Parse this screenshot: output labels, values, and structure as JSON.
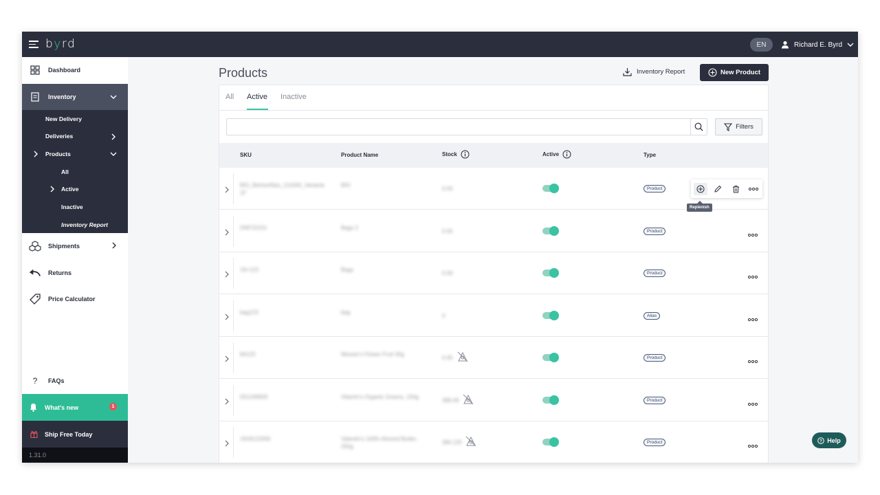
{
  "header": {
    "logo": "b",
    "logo_y": "y",
    "logo_rest": "rd",
    "language": "EN",
    "user_name": "Richard E. Byrd"
  },
  "sidebar": {
    "dashboard": "Dashboard",
    "inventory": "Inventory",
    "new_delivery": "New Delivery",
    "deliveries": "Deliveries",
    "products": "Products",
    "all": "All",
    "active": "Active",
    "inactive": "Inactive",
    "inventory_report": "Inventory Report",
    "shipments": "Shipments",
    "returns": "Returns",
    "price_calculator": "Price Calculator",
    "faqs": "FAQs",
    "whats_new": "What's new",
    "whats_new_count": "1",
    "ship_free": "Ship Free Today",
    "version": "1.31.0"
  },
  "main": {
    "title": "Products",
    "inventory_report_button": "Inventory Report",
    "new_product_button": "New Product",
    "tabs": [
      "All",
      "Active",
      "Inactive"
    ],
    "active_tab": "Active",
    "search_placeholder": "",
    "filters_button": "Filters",
    "columns": {
      "sku": "SKU",
      "product_name": "Product Name",
      "stock": "Stock",
      "active": "Active",
      "type": "Type"
    },
    "tooltip": "Replenish",
    "rows": [
      {
        "sku": "BIO_Bertverflats_12x500_Variante 1F",
        "name": "BIO",
        "stock": "0.00",
        "type": "Product",
        "no_image": false
      },
      {
        "sku": "DNF22210",
        "name": "Bags 2",
        "stock": "0.05",
        "type": "Product",
        "no_image": false
      },
      {
        "sku": "19+123",
        "name": "Bags",
        "stock": "0.00",
        "type": "Product",
        "no_image": false
      },
      {
        "sku": "bag123",
        "name": "bag",
        "stock": "0",
        "type": "Alias",
        "no_image": false
      },
      {
        "sku": "84123",
        "name": "Messer's Flower Fruit 30g",
        "stock": "0.05",
        "type": "Product",
        "no_image": true
      },
      {
        "sku": "001249929",
        "name": "Vitamin's Organic Greens, 150g",
        "stock": "399.09",
        "type": "Product",
        "no_image": true
      },
      {
        "sku": "1918122000",
        "name": "Valentin's 100% Almond Butter, 250g",
        "stock": "384.125",
        "type": "Product",
        "no_image": true
      }
    ]
  },
  "help_button": "Help",
  "colors": {
    "dark": "#2b2f3d",
    "accent": "#39c3a2",
    "whats_new_bg": "#2ebc97",
    "badge": "#e9545c"
  }
}
